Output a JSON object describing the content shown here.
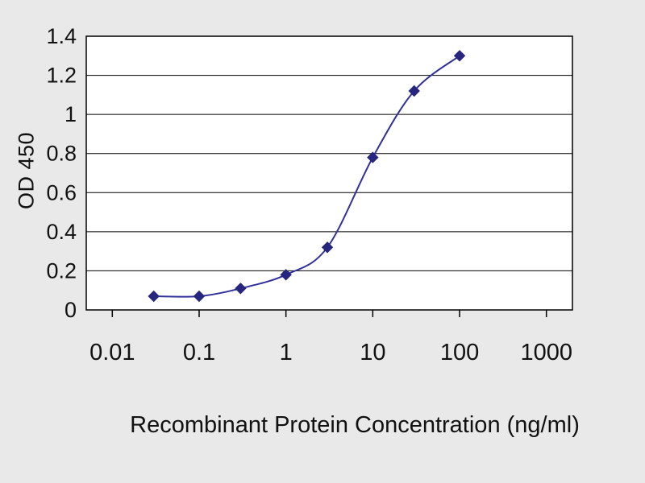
{
  "chart_data": {
    "type": "line",
    "title": "",
    "xlabel": "Recombinant Protein Concentration (ng/ml)",
    "ylabel": "OD 450",
    "xscale": "log",
    "x": [
      0.03,
      0.1,
      0.3,
      1,
      3,
      10,
      30,
      100
    ],
    "y": [
      0.07,
      0.07,
      0.11,
      0.18,
      0.32,
      0.78,
      1.12,
      1.3
    ],
    "xlim": [
      0.01,
      1000
    ],
    "ylim": [
      0,
      1.4
    ],
    "xticks": [
      0.01,
      0.1,
      1,
      10,
      100,
      1000
    ],
    "xtick_labels": [
      "0.01",
      "0.1",
      "1",
      "10",
      "100",
      "1000"
    ],
    "yticks": [
      0,
      0.2,
      0.4,
      0.6,
      0.8,
      1,
      1.2,
      1.4
    ],
    "ytick_labels": [
      "0",
      "0.2",
      "0.4",
      "0.6",
      "0.8",
      "1",
      "1.2",
      "1.4"
    ],
    "grid": "horizontal",
    "legend": "none",
    "marker": "diamond",
    "colors": {
      "line": "#31319b",
      "marker": "#26267f",
      "grid": "#000000",
      "axis": "#000000",
      "text": "#111111",
      "background": "#e9e9e9",
      "plot_background": "#ffffff"
    }
  }
}
